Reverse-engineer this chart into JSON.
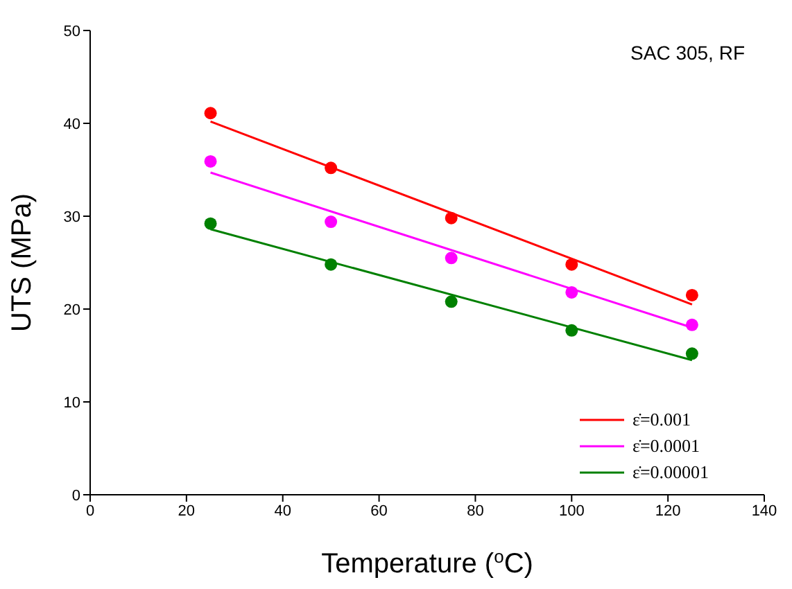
{
  "chart_data": {
    "type": "scatter",
    "xlabel": "Temperature ($^{o}$C)",
    "ylabel": "UTS (MPa)",
    "xlim": [
      0,
      140
    ],
    "xticks": [
      0,
      20,
      40,
      60,
      80,
      100,
      120,
      140
    ],
    "ylim": [
      0,
      50
    ],
    "yticks": [
      0,
      10,
      20,
      30,
      40,
      50
    ],
    "grid": false,
    "legend": "bottom right",
    "annotations": [
      "SAC 305, RF"
    ],
    "series": [
      {
        "marker": "circle",
        "color": "#ff0000",
        "x": [
          25,
          50,
          75,
          100,
          125
        ],
        "values": [
          41.1,
          35.2,
          29.8,
          24.8,
          21.5
        ]
      },
      {
        "marker": "circle",
        "color": "#ff00ff",
        "x": [
          25,
          50,
          75,
          100,
          125
        ],
        "values": [
          35.9,
          29.4,
          25.5,
          21.8,
          18.3
        ]
      },
      {
        "marker": "circle",
        "color": "#008000",
        "x": [
          25,
          50,
          75,
          100,
          125
        ],
        "values": [
          29.2,
          24.8,
          20.8,
          17.7,
          15.2
        ]
      },
      {
        "type": "line",
        "marker": "none",
        "name": "ε̇=0.001",
        "color": "#ff0000",
        "x": [
          25,
          125
        ],
        "values": [
          40.2,
          20.5
        ]
      },
      {
        "type": "line",
        "marker": "none",
        "name": "ε̇=0.0001",
        "color": "#ff00ff",
        "x": [
          25,
          125
        ],
        "values": [
          34.7,
          18.0
        ]
      },
      {
        "type": "line",
        "marker": "none",
        "name": "ε̇=0.00001",
        "color": "#008000",
        "x": [
          25,
          125
        ],
        "values": [
          28.6,
          14.5
        ]
      }
    ]
  }
}
